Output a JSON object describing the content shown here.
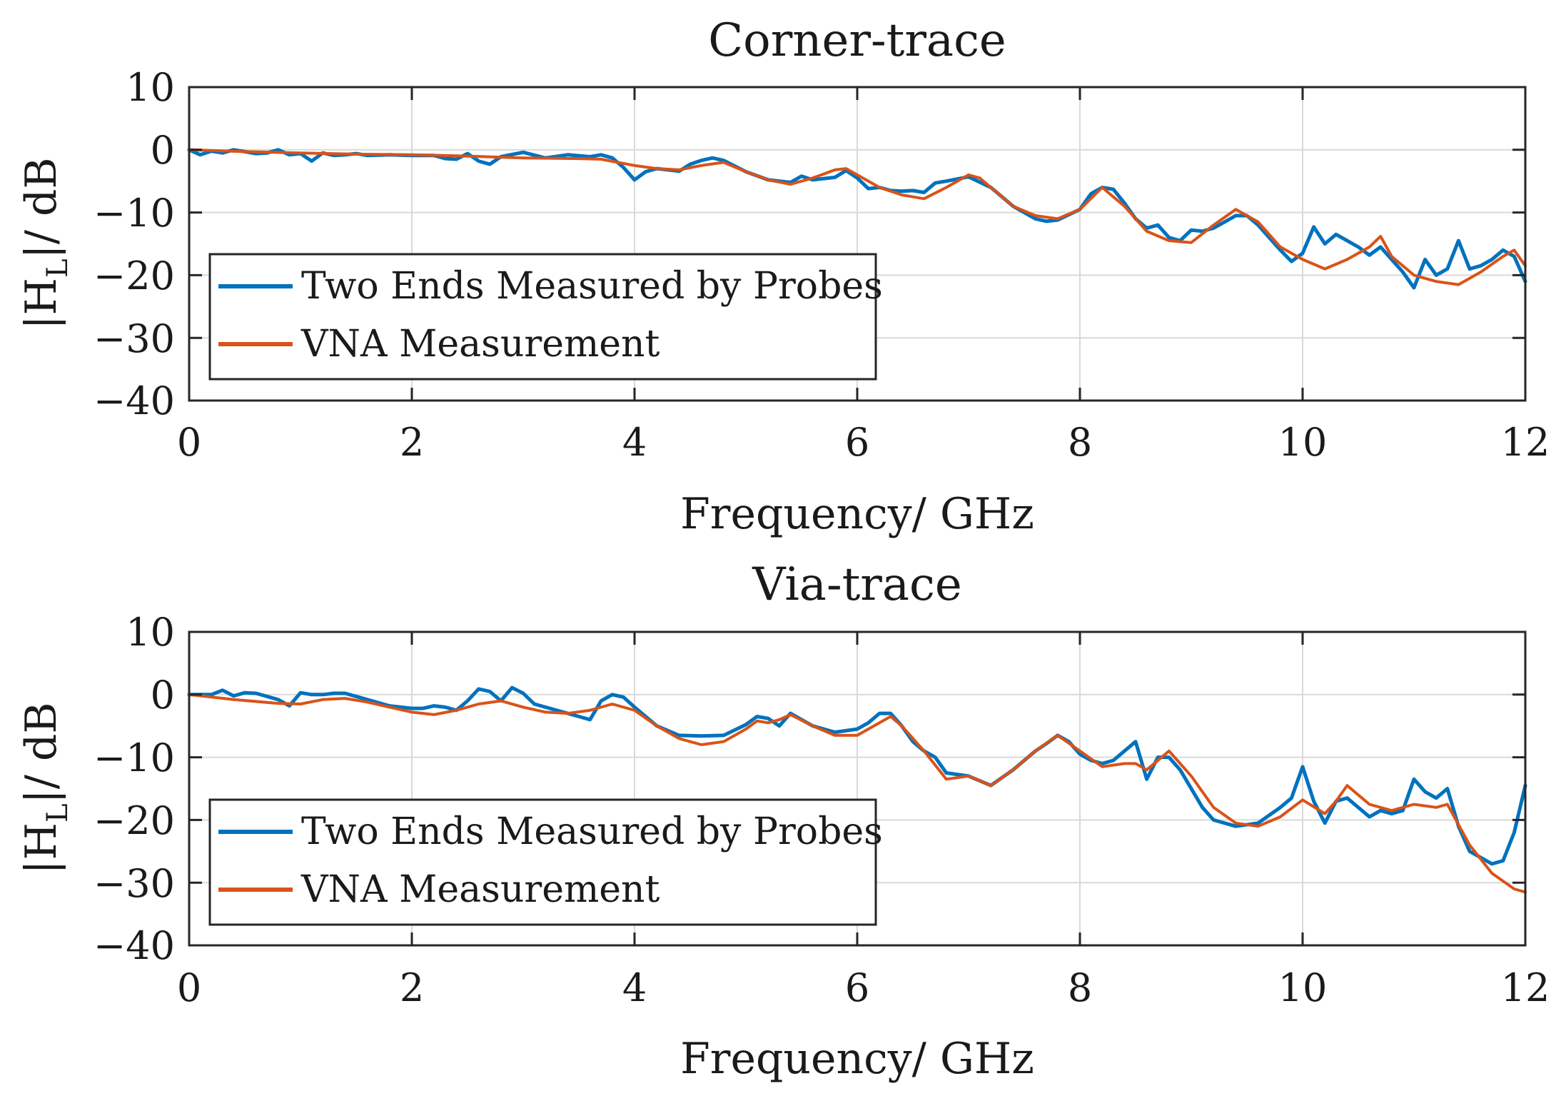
{
  "colors": {
    "probes": "#0072BD",
    "vna": "#D95319",
    "grid": "#d9d9d9",
    "axes": "#262626"
  },
  "chart_data": [
    {
      "type": "line",
      "title": "Corner-trace",
      "xlabel": "Frequency/ GHz",
      "ylabel": "|H_L|/ dB",
      "ylabel_main": "|H",
      "ylabel_sub": "L",
      "ylabel_rest": "|/ dB",
      "xlim": [
        0,
        12
      ],
      "ylim": [
        -40,
        10
      ],
      "xticks": [
        "0",
        "2",
        "4",
        "6",
        "8",
        "10",
        "12"
      ],
      "yticks": [
        "10",
        "0",
        "−10",
        "−20",
        "−30",
        "−40"
      ],
      "grid": true,
      "legend_position": "lower-left",
      "series": [
        {
          "name": "Two Ends Measured by Probes",
          "x": [
            0,
            0.1,
            0.2,
            0.3,
            0.4,
            0.5,
            0.6,
            0.7,
            0.8,
            0.9,
            1.0,
            1.1,
            1.2,
            1.3,
            1.4,
            1.5,
            1.6,
            1.8,
            2.0,
            2.2,
            2.3,
            2.4,
            2.5,
            2.6,
            2.7,
            2.8,
            3.0,
            3.2,
            3.4,
            3.6,
            3.7,
            3.8,
            3.9,
            4.0,
            4.1,
            4.2,
            4.3,
            4.4,
            4.5,
            4.6,
            4.7,
            4.8,
            5.0,
            5.2,
            5.4,
            5.5,
            5.6,
            5.8,
            5.9,
            6.0,
            6.1,
            6.2,
            6.3,
            6.4,
            6.5,
            6.6,
            6.7,
            6.8,
            7.0,
            7.2,
            7.4,
            7.6,
            7.7,
            7.8,
            8.0,
            8.1,
            8.2,
            8.3,
            8.4,
            8.5,
            8.6,
            8.7,
            8.8,
            8.9,
            9.0,
            9.1,
            9.2,
            9.3,
            9.4,
            9.5,
            9.6,
            9.7,
            9.8,
            9.9,
            10.0,
            10.1,
            10.2,
            10.3,
            10.4,
            10.5,
            10.6,
            10.7,
            10.8,
            10.9,
            11.0,
            11.1,
            11.2,
            11.3,
            11.4,
            11.5,
            11.6,
            11.7,
            11.8,
            11.9,
            12.0
          ],
          "y": [
            0,
            -0.8,
            -0.2,
            -0.5,
            0,
            -0.3,
            -0.6,
            -0.5,
            0,
            -0.8,
            -0.6,
            -1.8,
            -0.5,
            -0.9,
            -0.8,
            -0.6,
            -0.9,
            -0.8,
            -0.9,
            -0.9,
            -1.4,
            -1.5,
            -0.6,
            -1.8,
            -2.3,
            -1.1,
            -0.4,
            -1.3,
            -0.8,
            -1.1,
            -0.8,
            -1.3,
            -2.8,
            -4.8,
            -3.5,
            -3.0,
            -3.2,
            -3.4,
            -2.3,
            -1.7,
            -1.3,
            -1.7,
            -3.5,
            -4.8,
            -5.2,
            -4.2,
            -4.8,
            -4.4,
            -3.3,
            -4.5,
            -6.2,
            -6.0,
            -6.5,
            -6.6,
            -6.5,
            -6.8,
            -5.3,
            -5.0,
            -4.3,
            -6.0,
            -9.0,
            -11.0,
            -11.4,
            -11.2,
            -9.5,
            -7.0,
            -6.0,
            -6.3,
            -8.5,
            -11.0,
            -12.5,
            -12.0,
            -14.0,
            -14.5,
            -12.8,
            -13.0,
            -12.5,
            -11.5,
            -10.5,
            -10.5,
            -12.0,
            -14.0,
            -16.0,
            -17.8,
            -16.5,
            -12.3,
            -15.0,
            -13.5,
            -14.5,
            -15.5,
            -16.8,
            -15.5,
            -17.5,
            -19.5,
            -22.0,
            -17.5,
            -20.0,
            -19.0,
            -14.5,
            -19.0,
            -18.5,
            -17.5,
            -16.0,
            -17.0,
            -21.0
          ]
        },
        {
          "name": "VNA Measurement",
          "x": [
            0,
            0.5,
            1.0,
            1.5,
            2.0,
            2.5,
            3.0,
            3.5,
            3.7,
            4.0,
            4.2,
            4.4,
            4.6,
            4.8,
            5.0,
            5.2,
            5.4,
            5.6,
            5.8,
            5.9,
            6.0,
            6.2,
            6.4,
            6.6,
            6.8,
            7.0,
            7.1,
            7.2,
            7.4,
            7.6,
            7.8,
            8.0,
            8.2,
            8.4,
            8.6,
            8.8,
            9.0,
            9.2,
            9.4,
            9.6,
            9.8,
            10.0,
            10.2,
            10.4,
            10.6,
            10.7,
            10.8,
            11.0,
            11.2,
            11.4,
            11.6,
            11.8,
            11.9,
            12.0
          ],
          "y": [
            0,
            -0.3,
            -0.5,
            -0.7,
            -0.8,
            -1.0,
            -1.3,
            -1.4,
            -1.5,
            -2.5,
            -3.0,
            -3.2,
            -2.5,
            -2.0,
            -3.5,
            -4.8,
            -5.5,
            -4.5,
            -3.2,
            -3.0,
            -4.0,
            -6.0,
            -7.2,
            -7.8,
            -6.0,
            -4.0,
            -4.5,
            -6.0,
            -9.0,
            -10.5,
            -11.0,
            -9.5,
            -6.0,
            -9.0,
            -13.0,
            -14.5,
            -14.8,
            -12.0,
            -9.5,
            -11.5,
            -15.5,
            -17.5,
            -19.0,
            -17.5,
            -15.5,
            -13.8,
            -17.0,
            -20.0,
            -21.0,
            -21.5,
            -19.5,
            -17.0,
            -16.0,
            -18.5
          ]
        }
      ]
    },
    {
      "type": "line",
      "title": "Via-trace",
      "xlabel": "Frequency/ GHz",
      "ylabel": "|H_L|/ dB",
      "ylabel_main": "|H",
      "ylabel_sub": "L",
      "ylabel_rest": "|/ dB",
      "xlim": [
        0,
        12
      ],
      "ylim": [
        -40,
        10
      ],
      "xticks": [
        "0",
        "2",
        "4",
        "6",
        "8",
        "10",
        "12"
      ],
      "yticks": [
        "10",
        "0",
        "−10",
        "−20",
        "−30",
        "−40"
      ],
      "grid": true,
      "legend_position": "lower-left",
      "series": [
        {
          "name": "Two Ends Measured by Probes",
          "x": [
            0,
            0.2,
            0.3,
            0.4,
            0.5,
            0.6,
            0.7,
            0.8,
            0.9,
            1.0,
            1.1,
            1.2,
            1.3,
            1.4,
            1.6,
            1.8,
            2.0,
            2.1,
            2.2,
            2.3,
            2.4,
            2.5,
            2.6,
            2.7,
            2.8,
            2.9,
            3.0,
            3.1,
            3.2,
            3.4,
            3.5,
            3.6,
            3.7,
            3.8,
            3.9,
            4.0,
            4.2,
            4.4,
            4.6,
            4.8,
            5.0,
            5.1,
            5.2,
            5.3,
            5.4,
            5.5,
            5.6,
            5.8,
            6.0,
            6.1,
            6.2,
            6.3,
            6.4,
            6.5,
            6.6,
            6.7,
            6.8,
            7.0,
            7.2,
            7.4,
            7.6,
            7.7,
            7.8,
            7.9,
            8.0,
            8.1,
            8.2,
            8.3,
            8.4,
            8.5,
            8.6,
            8.7,
            8.8,
            8.9,
            9.0,
            9.1,
            9.2,
            9.4,
            9.6,
            9.8,
            9.9,
            10.0,
            10.1,
            10.2,
            10.3,
            10.4,
            10.5,
            10.6,
            10.7,
            10.8,
            10.9,
            11.0,
            11.1,
            11.2,
            11.3,
            11.4,
            11.5,
            11.6,
            11.7,
            11.8,
            11.9,
            12.0
          ],
          "y": [
            0,
            0,
            0.7,
            -0.2,
            0.3,
            0.2,
            -0.3,
            -0.8,
            -1.8,
            0.3,
            0,
            0,
            0.2,
            0.2,
            -0.8,
            -1.8,
            -2.2,
            -2.2,
            -1.8,
            -2.0,
            -2.5,
            -1.0,
            0.9,
            0.5,
            -1.0,
            1.1,
            0.2,
            -1.5,
            -2.0,
            -3.0,
            -3.5,
            -4.0,
            -1.0,
            0,
            -0.4,
            -2.0,
            -5.0,
            -6.5,
            -6.6,
            -6.5,
            -4.8,
            -3.5,
            -3.8,
            -5.0,
            -3.0,
            -4.0,
            -5.0,
            -6.0,
            -5.5,
            -4.5,
            -3.0,
            -3.0,
            -5.0,
            -7.5,
            -9.0,
            -10.0,
            -12.5,
            -13.0,
            -14.5,
            -12.0,
            -9.0,
            -7.8,
            -6.5,
            -7.5,
            -9.5,
            -10.5,
            -11.0,
            -10.5,
            -9.0,
            -7.5,
            -13.5,
            -10.0,
            -10.0,
            -12.0,
            -15.0,
            -18.0,
            -20.0,
            -21.0,
            -20.5,
            -18.0,
            -16.5,
            -11.5,
            -17.0,
            -20.5,
            -17.0,
            -16.5,
            -18.0,
            -19.5,
            -18.5,
            -19.0,
            -18.5,
            -13.5,
            -15.5,
            -16.5,
            -15.0,
            -21.0,
            -25.0,
            -26.0,
            -27.0,
            -26.5,
            -22.0,
            -14.5
          ]
        },
        {
          "name": "VNA Measurement",
          "x": [
            0,
            0.4,
            0.8,
            1.0,
            1.2,
            1.4,
            1.6,
            1.8,
            2.0,
            2.2,
            2.4,
            2.6,
            2.8,
            3.0,
            3.2,
            3.4,
            3.6,
            3.8,
            4.0,
            4.2,
            4.4,
            4.6,
            4.8,
            5.0,
            5.1,
            5.2,
            5.3,
            5.4,
            5.6,
            5.8,
            6.0,
            6.2,
            6.3,
            6.4,
            6.6,
            6.8,
            7.0,
            7.2,
            7.4,
            7.6,
            7.8,
            8.0,
            8.2,
            8.4,
            8.5,
            8.6,
            8.8,
            9.0,
            9.2,
            9.4,
            9.6,
            9.8,
            10.0,
            10.2,
            10.3,
            10.4,
            10.6,
            10.8,
            11.0,
            11.2,
            11.3,
            11.5,
            11.7,
            11.9,
            12.0
          ],
          "y": [
            0,
            -0.8,
            -1.4,
            -1.5,
            -0.8,
            -0.6,
            -1.2,
            -2.0,
            -2.8,
            -3.2,
            -2.5,
            -1.5,
            -1.0,
            -2.0,
            -2.8,
            -3.0,
            -2.5,
            -1.5,
            -2.5,
            -5.0,
            -7.0,
            -8.0,
            -7.5,
            -5.5,
            -4.2,
            -4.5,
            -4.0,
            -3.2,
            -5.0,
            -6.5,
            -6.5,
            -4.5,
            -3.5,
            -5.0,
            -9.0,
            -13.5,
            -13.0,
            -14.5,
            -12.0,
            -9.0,
            -6.5,
            -9.0,
            -11.5,
            -11.0,
            -11.0,
            -12.0,
            -9.0,
            -13.0,
            -18.0,
            -20.5,
            -21.0,
            -19.5,
            -16.8,
            -19.0,
            -17.0,
            -14.5,
            -17.5,
            -18.5,
            -17.5,
            -18.0,
            -17.5,
            -24.0,
            -28.5,
            -31.0,
            -31.5
          ]
        }
      ]
    }
  ]
}
